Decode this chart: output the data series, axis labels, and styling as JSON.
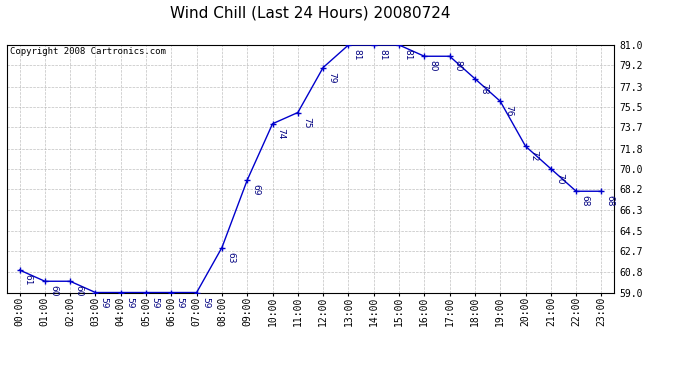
{
  "title": "Wind Chill (Last 24 Hours) 20080724",
  "copyright": "Copyright 2008 Cartronics.com",
  "hours": [
    "00:00",
    "01:00",
    "02:00",
    "03:00",
    "04:00",
    "05:00",
    "06:00",
    "07:00",
    "08:00",
    "09:00",
    "10:00",
    "11:00",
    "12:00",
    "13:00",
    "14:00",
    "15:00",
    "16:00",
    "17:00",
    "18:00",
    "19:00",
    "20:00",
    "21:00",
    "22:00",
    "23:00"
  ],
  "values": [
    61,
    60,
    60,
    59,
    59,
    59,
    59,
    59,
    63,
    69,
    74,
    75,
    79,
    81,
    81,
    81,
    80,
    80,
    78,
    76,
    72,
    70,
    68,
    68
  ],
  "ylim_min": 59.0,
  "ylim_max": 81.0,
  "yticks": [
    59.0,
    60.8,
    62.7,
    64.5,
    66.3,
    68.2,
    70.0,
    71.8,
    73.7,
    75.5,
    77.3,
    79.2,
    81.0
  ],
  "line_color": "#0000cc",
  "marker": "+",
  "marker_color": "#0000cc",
  "bg_color": "#ffffff",
  "grid_color": "#b0b0b0",
  "label_color": "#000080",
  "title_fontsize": 11,
  "annotation_fontsize": 6.5,
  "tick_fontsize": 7,
  "copyright_fontsize": 6.5
}
